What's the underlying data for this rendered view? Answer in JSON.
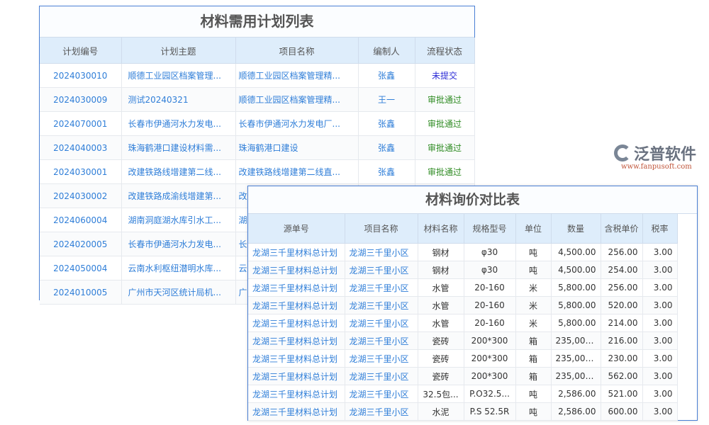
{
  "plan_list": {
    "title": "材料需用计划列表",
    "headers": [
      "计划编号",
      "计划主题",
      "项目名称",
      "编制人",
      "流程状态"
    ],
    "rows": [
      [
        "2024030010",
        "顺德工业园区档案管理...",
        "顺德工业园区档案管理精...",
        "张鑫",
        "未提交"
      ],
      [
        "2024030009",
        "测试20240321",
        "顺德工业园区档案管理精...",
        "王一",
        "审批通过"
      ],
      [
        "2024070001",
        "长春市伊通河水力发电...",
        "长春市伊通河水力发电厂...",
        "张鑫",
        "审批通过"
      ],
      [
        "2024040003",
        "珠海鹤港口建设材料需...",
        "珠海鹤港口建设",
        "张鑫",
        "审批通过"
      ],
      [
        "2024030001",
        "改建铁路线增建第二线...",
        "改建铁路线增建第二线直...",
        "张鑫",
        "审批通过"
      ],
      [
        "2024030002",
        "改建铁路成渝线增建第...",
        "改",
        "",
        ""
      ],
      [
        "2024060004",
        "湖南洞庭湖水库引水工...",
        "湖",
        "",
        ""
      ],
      [
        "2024020005",
        "长春市伊通河水力发电...",
        "长",
        "",
        ""
      ],
      [
        "2024050004",
        "云南水利枢纽潜明水库...",
        "云",
        "",
        ""
      ],
      [
        "2024010005",
        "广州市天河区统计局机...",
        "广",
        "",
        ""
      ]
    ]
  },
  "inquiry": {
    "title": "材料询价对比表",
    "headers": [
      "源单号",
      "项目名称",
      "材料名称",
      "规格型号",
      "单位",
      "数量",
      "含税单价",
      "税率"
    ],
    "rows": [
      [
        "龙湖三千里材料总计划",
        "龙湖三千里小区",
        "钢材",
        "φ30",
        "吨",
        "4,500.00",
        "256.00",
        "3.00"
      ],
      [
        "龙湖三千里材料总计划",
        "龙湖三千里小区",
        "钢材",
        "φ30",
        "吨",
        "4,500.00",
        "254.00",
        "3.00"
      ],
      [
        "龙湖三千里材料总计划",
        "龙湖三千里小区",
        "水管",
        "20-160",
        "米",
        "5,800.00",
        "256.00",
        "3.00"
      ],
      [
        "龙湖三千里材料总计划",
        "龙湖三千里小区",
        "水管",
        "20-160",
        "米",
        "5,800.00",
        "520.00",
        "3.00"
      ],
      [
        "龙湖三千里材料总计划",
        "龙湖三千里小区",
        "水管",
        "20-160",
        "米",
        "5,800.00",
        "214.00",
        "3.00"
      ],
      [
        "龙湖三千里材料总计划",
        "龙湖三千里小区",
        "瓷砖",
        "200*300",
        "箱",
        "235,000...",
        "216.00",
        "3.00"
      ],
      [
        "龙湖三千里材料总计划",
        "龙湖三千里小区",
        "瓷砖",
        "200*300",
        "箱",
        "235,000...",
        "230.00",
        "3.00"
      ],
      [
        "龙湖三千里材料总计划",
        "龙湖三千里小区",
        "瓷砖",
        "200*300",
        "箱",
        "235,000...",
        "562.00",
        "3.00"
      ],
      [
        "龙湖三千里材料总计划",
        "龙湖三千里小区",
        "32.5包...",
        "P.O32.5...",
        "吨",
        "2,586.00",
        "521.00",
        "3.00"
      ],
      [
        "龙湖三千里材料总计划",
        "龙湖三千里小区",
        "水泥",
        "P.S 52.5R",
        "吨",
        "2,586.00",
        "600.00",
        "3.00"
      ]
    ]
  },
  "watermark": {
    "name": "泛普软件",
    "url": "www.fanpusoft.com"
  }
}
